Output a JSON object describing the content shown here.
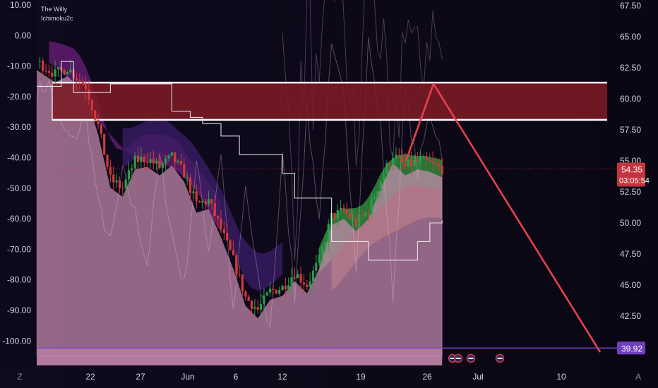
{
  "indicators": [
    "The Willy",
    "Ichimoku2c"
  ],
  "colors": {
    "background": "#0c0717",
    "candle_up": "#2a9d4a",
    "candle_down": "#d23a3a",
    "willy_fill": "#c98ab0",
    "resistance_zone": "#7c1a26",
    "projection": "#e8404f",
    "support_line": "#7d49c9",
    "price_tag": "#c2353f",
    "level_tag": "#6f3fc0"
  },
  "chart_data": {
    "type": "candlestick",
    "right_axis": {
      "ticks": [
        "67.50",
        "65.00",
        "62.50",
        "60.00",
        "57.50",
        "55.00",
        "52.50",
        "50.00",
        "47.50",
        "45.00",
        "42.50"
      ],
      "range": [
        38.5,
        67.5
      ]
    },
    "left_axis": {
      "ticks": [
        "10.00",
        "0.00",
        "-10.00",
        "-20.00",
        "-30.00",
        "-40.00",
        "-50.00",
        "-60.00",
        "-70.00",
        "-80.00",
        "-90.00",
        "-100.00"
      ],
      "range": [
        -108,
        10
      ]
    },
    "x_axis": {
      "ticks": [
        "22",
        "27",
        "Jun",
        "6",
        "12",
        "19",
        "26",
        "Jul",
        "10"
      ]
    },
    "current_price": {
      "value": "54.35",
      "countdown": "03:05:54"
    },
    "support_level": {
      "value": "39.92"
    },
    "resistance_zone": {
      "top": 61.3,
      "bottom": 58.3
    },
    "projection": [
      {
        "date": "Jun 23",
        "price": 55.0
      },
      {
        "date": "Jun 26",
        "price": 61.2
      },
      {
        "date": "Jul 15",
        "price": 39.6
      }
    ],
    "price_path": [
      [
        0,
        63
      ],
      [
        3,
        62
      ],
      [
        5,
        62.5
      ],
      [
        8,
        61
      ],
      [
        10,
        57.8
      ],
      [
        12,
        53.5
      ],
      [
        14,
        52.8
      ],
      [
        16,
        55
      ],
      [
        18,
        55.2
      ],
      [
        20,
        54.5
      ],
      [
        22,
        55.3
      ],
      [
        24,
        54
      ],
      [
        26,
        51.5
      ],
      [
        28,
        51.8
      ],
      [
        30,
        49.5
      ],
      [
        32,
        47
      ],
      [
        34,
        44
      ],
      [
        36,
        43
      ],
      [
        38,
        44.5
      ],
      [
        40,
        44.8
      ],
      [
        42,
        46
      ],
      [
        44,
        45
      ],
      [
        46,
        47
      ],
      [
        48,
        50.5
      ],
      [
        50,
        51
      ],
      [
        52,
        50
      ],
      [
        54,
        51
      ],
      [
        56,
        53.5
      ],
      [
        58,
        55.5
      ],
      [
        60,
        54.5
      ],
      [
        62,
        55
      ],
      [
        64,
        54.8
      ],
      [
        66,
        54.35
      ]
    ],
    "willy_path": [
      [
        0,
        -18
      ],
      [
        2,
        -16
      ],
      [
        4,
        -30
      ],
      [
        6,
        -35
      ],
      [
        8,
        -25
      ],
      [
        10,
        -55
      ],
      [
        12,
        -68
      ],
      [
        14,
        -45
      ],
      [
        16,
        -58
      ],
      [
        18,
        -75
      ],
      [
        20,
        -40
      ],
      [
        22,
        -65
      ],
      [
        24,
        -82
      ],
      [
        26,
        -42
      ],
      [
        28,
        -70
      ],
      [
        30,
        -38
      ],
      [
        32,
        -92
      ],
      [
        34,
        -50
      ],
      [
        36,
        -80
      ],
      [
        38,
        -96
      ],
      [
        40,
        -40
      ],
      [
        42,
        -85
      ],
      [
        44,
        -25
      ],
      [
        46,
        -60
      ],
      [
        48,
        -5
      ],
      [
        50,
        -20
      ],
      [
        52,
        -75
      ],
      [
        54,
        -2
      ],
      [
        56,
        -30
      ],
      [
        58,
        -85
      ],
      [
        60,
        -18
      ],
      [
        62,
        -45
      ],
      [
        64,
        -25
      ],
      [
        66,
        -38
      ]
    ]
  }
}
